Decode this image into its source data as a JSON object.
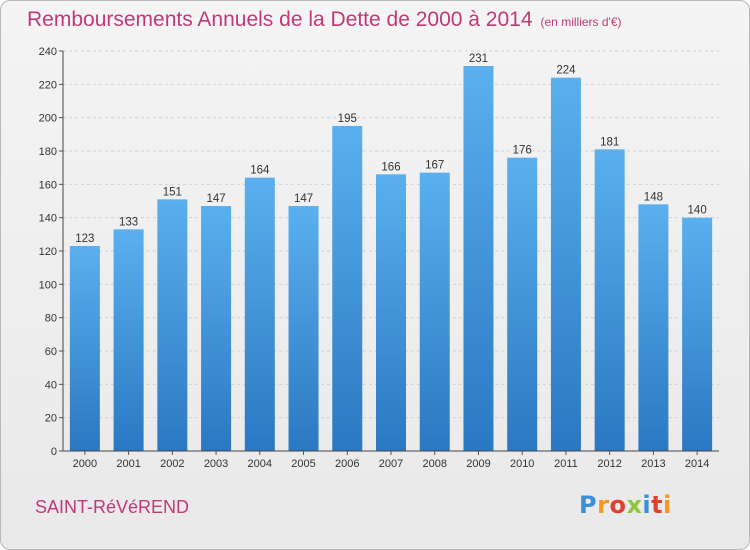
{
  "header": {
    "title": "Remboursements Annuels de la Dette de 2000 à 2014",
    "subtitle": "(en milliers d'€)"
  },
  "footer": {
    "commune": "SAINT-RéVéREND",
    "logo_letters": [
      "P",
      "r",
      "o",
      "x",
      "i",
      "t",
      "i"
    ],
    "logo_colors": [
      "#3a8fd8",
      "#f29a1f",
      "#e0402f",
      "#8cc63f",
      "#3a8fd8",
      "#e0402f",
      "#f29a1f"
    ]
  },
  "colors": {
    "bar": "#3d8ad6",
    "title": "#c03a78",
    "grid": "#d0d0d0"
  },
  "chart_data": {
    "type": "bar",
    "categories": [
      "2000",
      "2001",
      "2002",
      "2003",
      "2004",
      "2005",
      "2006",
      "2007",
      "2008",
      "2009",
      "2010",
      "2011",
      "2012",
      "2013",
      "2014"
    ],
    "values": [
      123,
      133,
      151,
      147,
      164,
      147,
      195,
      166,
      167,
      231,
      176,
      224,
      181,
      148,
      140
    ],
    "ylim": [
      0,
      240
    ],
    "yticks": [
      0,
      20,
      40,
      60,
      80,
      100,
      120,
      140,
      160,
      180,
      200,
      220,
      240
    ],
    "grid": true,
    "data_labels": true
  }
}
